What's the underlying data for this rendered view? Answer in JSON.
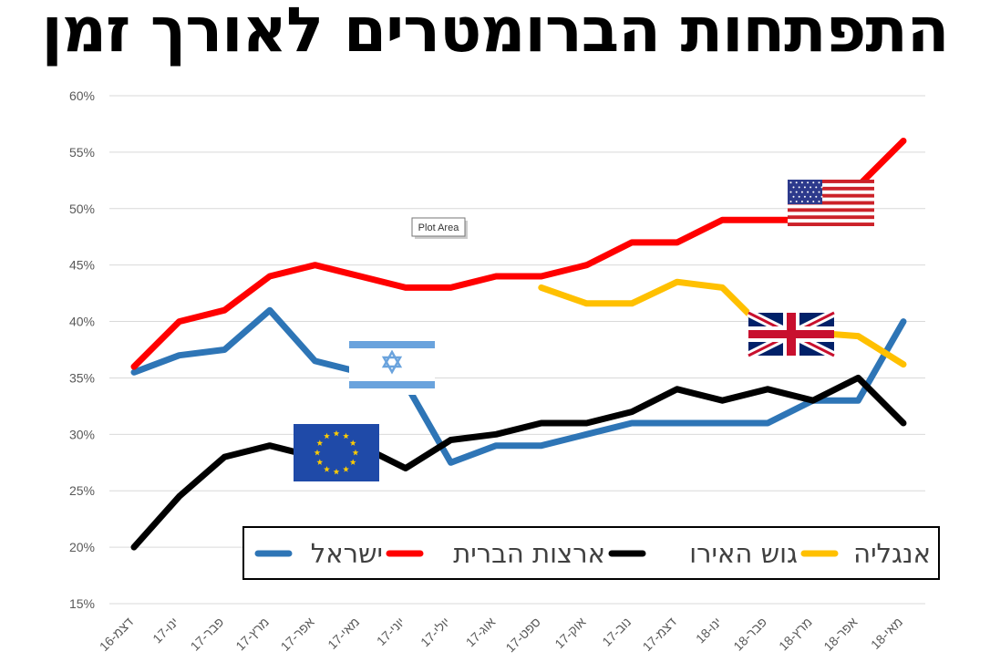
{
  "chart_data": {
    "type": "line",
    "title": "התפתחות הברומטרים לאורך זמן",
    "categories": [
      "דצמ-16",
      "ינו-17",
      "פבר-17",
      "מרץ-17",
      "אפר-17",
      "מאי-17",
      "יוני-17",
      "יולי-17",
      "אוג-17",
      "ספט-17",
      "אוק-17",
      "נוב-17",
      "דצמ-17",
      "ינו-18",
      "פבר-18",
      "מרץ-18",
      "אפר-18",
      "מאי-18"
    ],
    "ylim": [
      0.15,
      0.6
    ],
    "yticks": [
      0.15,
      0.2,
      0.25,
      0.3,
      0.35,
      0.4,
      0.45,
      0.5,
      0.55,
      0.6
    ],
    "ytick_labels": [
      "15%",
      "20%",
      "25%",
      "30%",
      "35%",
      "40%",
      "45%",
      "50%",
      "55%",
      "60%"
    ],
    "grid": true,
    "legend_position": "bottom",
    "series": [
      {
        "name": "ישראל",
        "color": "#2E75B6",
        "values": [
          0.355,
          0.37,
          0.375,
          0.41,
          0.365,
          0.355,
          0.345,
          0.275,
          0.29,
          0.29,
          0.3,
          0.31,
          0.31,
          0.31,
          0.31,
          0.33,
          0.33,
          0.4
        ]
      },
      {
        "name": "ארצות הברית",
        "color": "#FF0000",
        "values": [
          0.36,
          0.4,
          0.41,
          0.44,
          0.45,
          0.44,
          0.43,
          0.43,
          0.44,
          0.44,
          0.45,
          0.47,
          0.47,
          0.49,
          0.49,
          0.49,
          0.52,
          0.56
        ]
      },
      {
        "name": "גוש האירו",
        "color": "#000000",
        "values": [
          0.2,
          0.245,
          0.28,
          0.29,
          0.28,
          0.29,
          0.27,
          0.295,
          0.3,
          0.31,
          0.31,
          0.32,
          0.34,
          0.33,
          0.34,
          0.33,
          0.35,
          0.31
        ]
      },
      {
        "name": "אנגליה",
        "color": "#FFC000",
        "values": [
          null,
          null,
          null,
          null,
          null,
          null,
          null,
          null,
          null,
          0.43,
          0.416,
          0.416,
          0.435,
          0.43,
          0.39,
          0.39,
          0.387,
          0.362
        ]
      }
    ],
    "flags": [
      {
        "icon": "israel-flag-icon",
        "series": "ישראל"
      },
      {
        "icon": "eu-flag-icon",
        "series": "גוש האירו"
      },
      {
        "icon": "usa-flag-icon",
        "series": "ארצות הברית"
      },
      {
        "icon": "uk-flag-icon",
        "series": "אנגליה"
      }
    ],
    "tooltip": "Plot Area"
  }
}
